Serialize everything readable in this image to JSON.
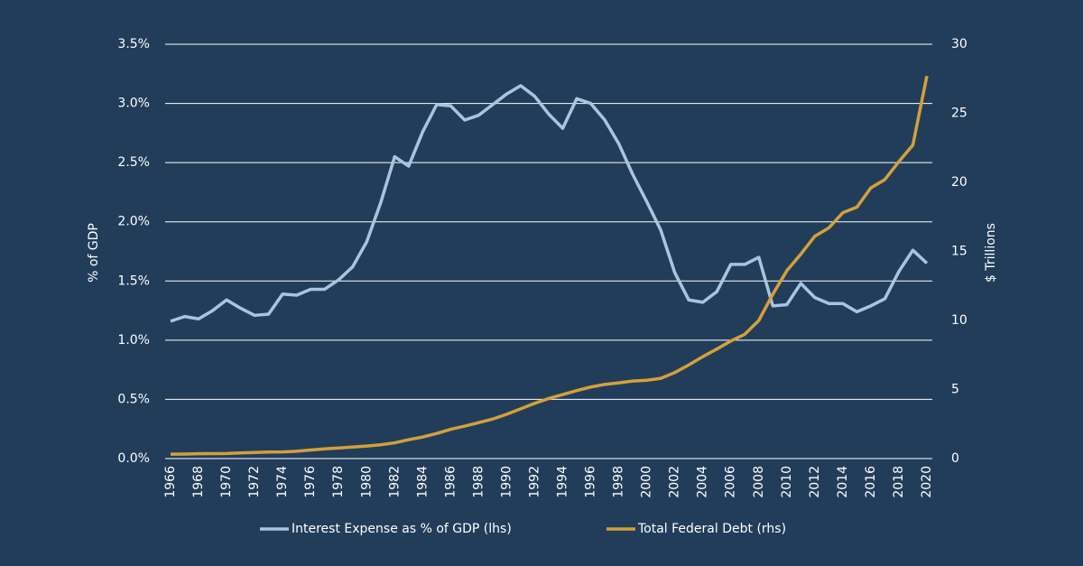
{
  "chart_data": {
    "type": "line",
    "y_label": "% of GDP",
    "y2_label": "$ Trillions",
    "x": [
      1966,
      1967,
      1968,
      1969,
      1970,
      1971,
      1972,
      1973,
      1974,
      1975,
      1976,
      1977,
      1978,
      1979,
      1980,
      1981,
      1982,
      1983,
      1984,
      1985,
      1986,
      1987,
      1988,
      1989,
      1990,
      1991,
      1992,
      1993,
      1994,
      1995,
      1996,
      1997,
      1998,
      1999,
      2000,
      2001,
      2002,
      2003,
      2004,
      2005,
      2006,
      2007,
      2008,
      2009,
      2010,
      2011,
      2012,
      2013,
      2014,
      2015,
      2016,
      2017,
      2018,
      2019,
      2020
    ],
    "xlim": [
      1966,
      2020
    ],
    "xticks": [
      1966,
      1968,
      1970,
      1972,
      1974,
      1976,
      1978,
      1980,
      1982,
      1984,
      1986,
      1988,
      1990,
      1992,
      1994,
      1996,
      1998,
      2000,
      2002,
      2004,
      2006,
      2008,
      2010,
      2012,
      2014,
      2016,
      2018,
      2020
    ],
    "ylim": [
      0,
      3.5
    ],
    "yticks": [
      {
        "value": 0,
        "label": "0.0%"
      },
      {
        "value": 0.5,
        "label": "0.5%"
      },
      {
        "value": 1,
        "label": "1.0%"
      },
      {
        "value": 1.5,
        "label": "1.5%"
      },
      {
        "value": 2,
        "label": "2.0%"
      },
      {
        "value": 2.5,
        "label": "2.5%"
      },
      {
        "value": 3,
        "label": "3.0%"
      },
      {
        "value": 3.5,
        "label": "3.5%"
      }
    ],
    "y2lim": [
      0,
      30
    ],
    "y2ticks": [
      0,
      5,
      10,
      15,
      20,
      25,
      30
    ],
    "grid": true,
    "series": [
      {
        "name": "Interest Expense as % of GDP (lhs)",
        "color": "#a9c4e2",
        "values": [
          1.16,
          1.2,
          1.18,
          1.25,
          1.34,
          1.27,
          1.21,
          1.22,
          1.39,
          1.38,
          1.43,
          1.43,
          1.51,
          1.62,
          1.83,
          2.16,
          2.55,
          2.47,
          2.76,
          2.99,
          2.98,
          2.86,
          2.9,
          2.99,
          3.08,
          3.15,
          3.06,
          2.91,
          2.79,
          3.04,
          3.0,
          2.86,
          2.66,
          2.4,
          2.17,
          1.93,
          1.57,
          1.34,
          1.32,
          1.41,
          1.64,
          1.64,
          1.7,
          1.29,
          1.3,
          1.48,
          1.36,
          1.31,
          1.31,
          1.24,
          1.29,
          1.35,
          1.58,
          1.76,
          1.65
        ]
      },
      {
        "name": "Total Federal Debt (rhs)",
        "color": "#d4a03a",
        "axis": "y2",
        "values": [
          0.32,
          0.33,
          0.35,
          0.36,
          0.37,
          0.41,
          0.44,
          0.47,
          0.48,
          0.53,
          0.62,
          0.7,
          0.77,
          0.83,
          0.91,
          1.0,
          1.14,
          1.37,
          1.56,
          1.82,
          2.12,
          2.35,
          2.6,
          2.86,
          3.21,
          3.6,
          4.0,
          4.35,
          4.64,
          4.92,
          5.18,
          5.37,
          5.48,
          5.61,
          5.67,
          5.81,
          6.23,
          6.78,
          7.38,
          7.93,
          8.51,
          9.0,
          10.0,
          11.9,
          13.6,
          14.8,
          16.1,
          16.7,
          17.8,
          18.2,
          19.6,
          20.2,
          21.5,
          22.7,
          27.7
        ]
      }
    ]
  }
}
